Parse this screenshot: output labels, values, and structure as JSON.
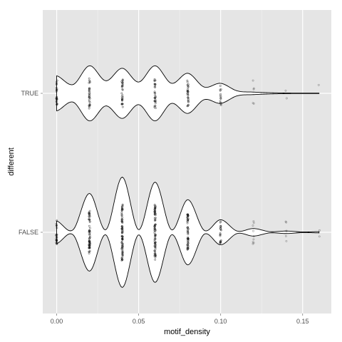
{
  "chart_data": {
    "type": "violin",
    "title": "",
    "xlabel": "motif_density",
    "ylabel": "different",
    "xlim": [
      -0.0085,
      0.1675
    ],
    "grid": true,
    "orientation": "horizontal",
    "x_ticks": [
      {
        "value": 0.0,
        "label": "0.00"
      },
      {
        "value": 0.05,
        "label": "0.05"
      },
      {
        "value": 0.1,
        "label": "0.10"
      },
      {
        "value": 0.15,
        "label": "0.15"
      }
    ],
    "categories": [
      "TRUE",
      "FALSE"
    ],
    "series": [
      {
        "category": "TRUE",
        "density_profile": [
          [
            0.0,
            0.28
          ],
          [
            0.01,
            0.14
          ],
          [
            0.02,
            0.44
          ],
          [
            0.03,
            0.2
          ],
          [
            0.04,
            0.4
          ],
          [
            0.05,
            0.18
          ],
          [
            0.06,
            0.44
          ],
          [
            0.07,
            0.16
          ],
          [
            0.08,
            0.32
          ],
          [
            0.09,
            0.1
          ],
          [
            0.1,
            0.16
          ],
          [
            0.11,
            0.04
          ],
          [
            0.12,
            0.02
          ],
          [
            0.13,
            0.01
          ],
          [
            0.14,
            0.005
          ],
          [
            0.15,
            0.003
          ],
          [
            0.16,
            0.003
          ]
        ],
        "points": [
          {
            "x": 0.0,
            "n": 22
          },
          {
            "x": 0.02,
            "n": 30
          },
          {
            "x": 0.04,
            "n": 30
          },
          {
            "x": 0.06,
            "n": 30
          },
          {
            "x": 0.08,
            "n": 28
          },
          {
            "x": 0.1,
            "n": 14
          },
          {
            "x": 0.12,
            "n": 5
          },
          {
            "x": 0.14,
            "n": 2
          },
          {
            "x": 0.16,
            "n": 1
          }
        ]
      },
      {
        "category": "FALSE",
        "density_profile": [
          [
            0.0,
            0.18
          ],
          [
            0.01,
            0.04
          ],
          [
            0.02,
            0.62
          ],
          [
            0.03,
            0.04
          ],
          [
            0.04,
            0.88
          ],
          [
            0.05,
            0.04
          ],
          [
            0.06,
            0.8
          ],
          [
            0.07,
            0.04
          ],
          [
            0.08,
            0.52
          ],
          [
            0.09,
            0.03
          ],
          [
            0.1,
            0.2
          ],
          [
            0.11,
            0.02
          ],
          [
            0.12,
            0.06
          ],
          [
            0.13,
            0.01
          ],
          [
            0.14,
            0.02
          ],
          [
            0.15,
            0.005
          ],
          [
            0.16,
            0.01
          ]
        ],
        "points": [
          {
            "x": 0.0,
            "n": 22
          },
          {
            "x": 0.02,
            "n": 60
          },
          {
            "x": 0.04,
            "n": 80
          },
          {
            "x": 0.06,
            "n": 80
          },
          {
            "x": 0.08,
            "n": 55
          },
          {
            "x": 0.1,
            "n": 20
          },
          {
            "x": 0.12,
            "n": 9
          },
          {
            "x": 0.14,
            "n": 5
          },
          {
            "x": 0.16,
            "n": 2
          }
        ]
      }
    ],
    "colors": {
      "panel_background": "#e5e5e5",
      "grid_major": "#ffffff",
      "grid_minor": "#f2f2f2",
      "violin_fill": "#ffffff",
      "violin_stroke": "#000000",
      "point": "#000000"
    }
  }
}
